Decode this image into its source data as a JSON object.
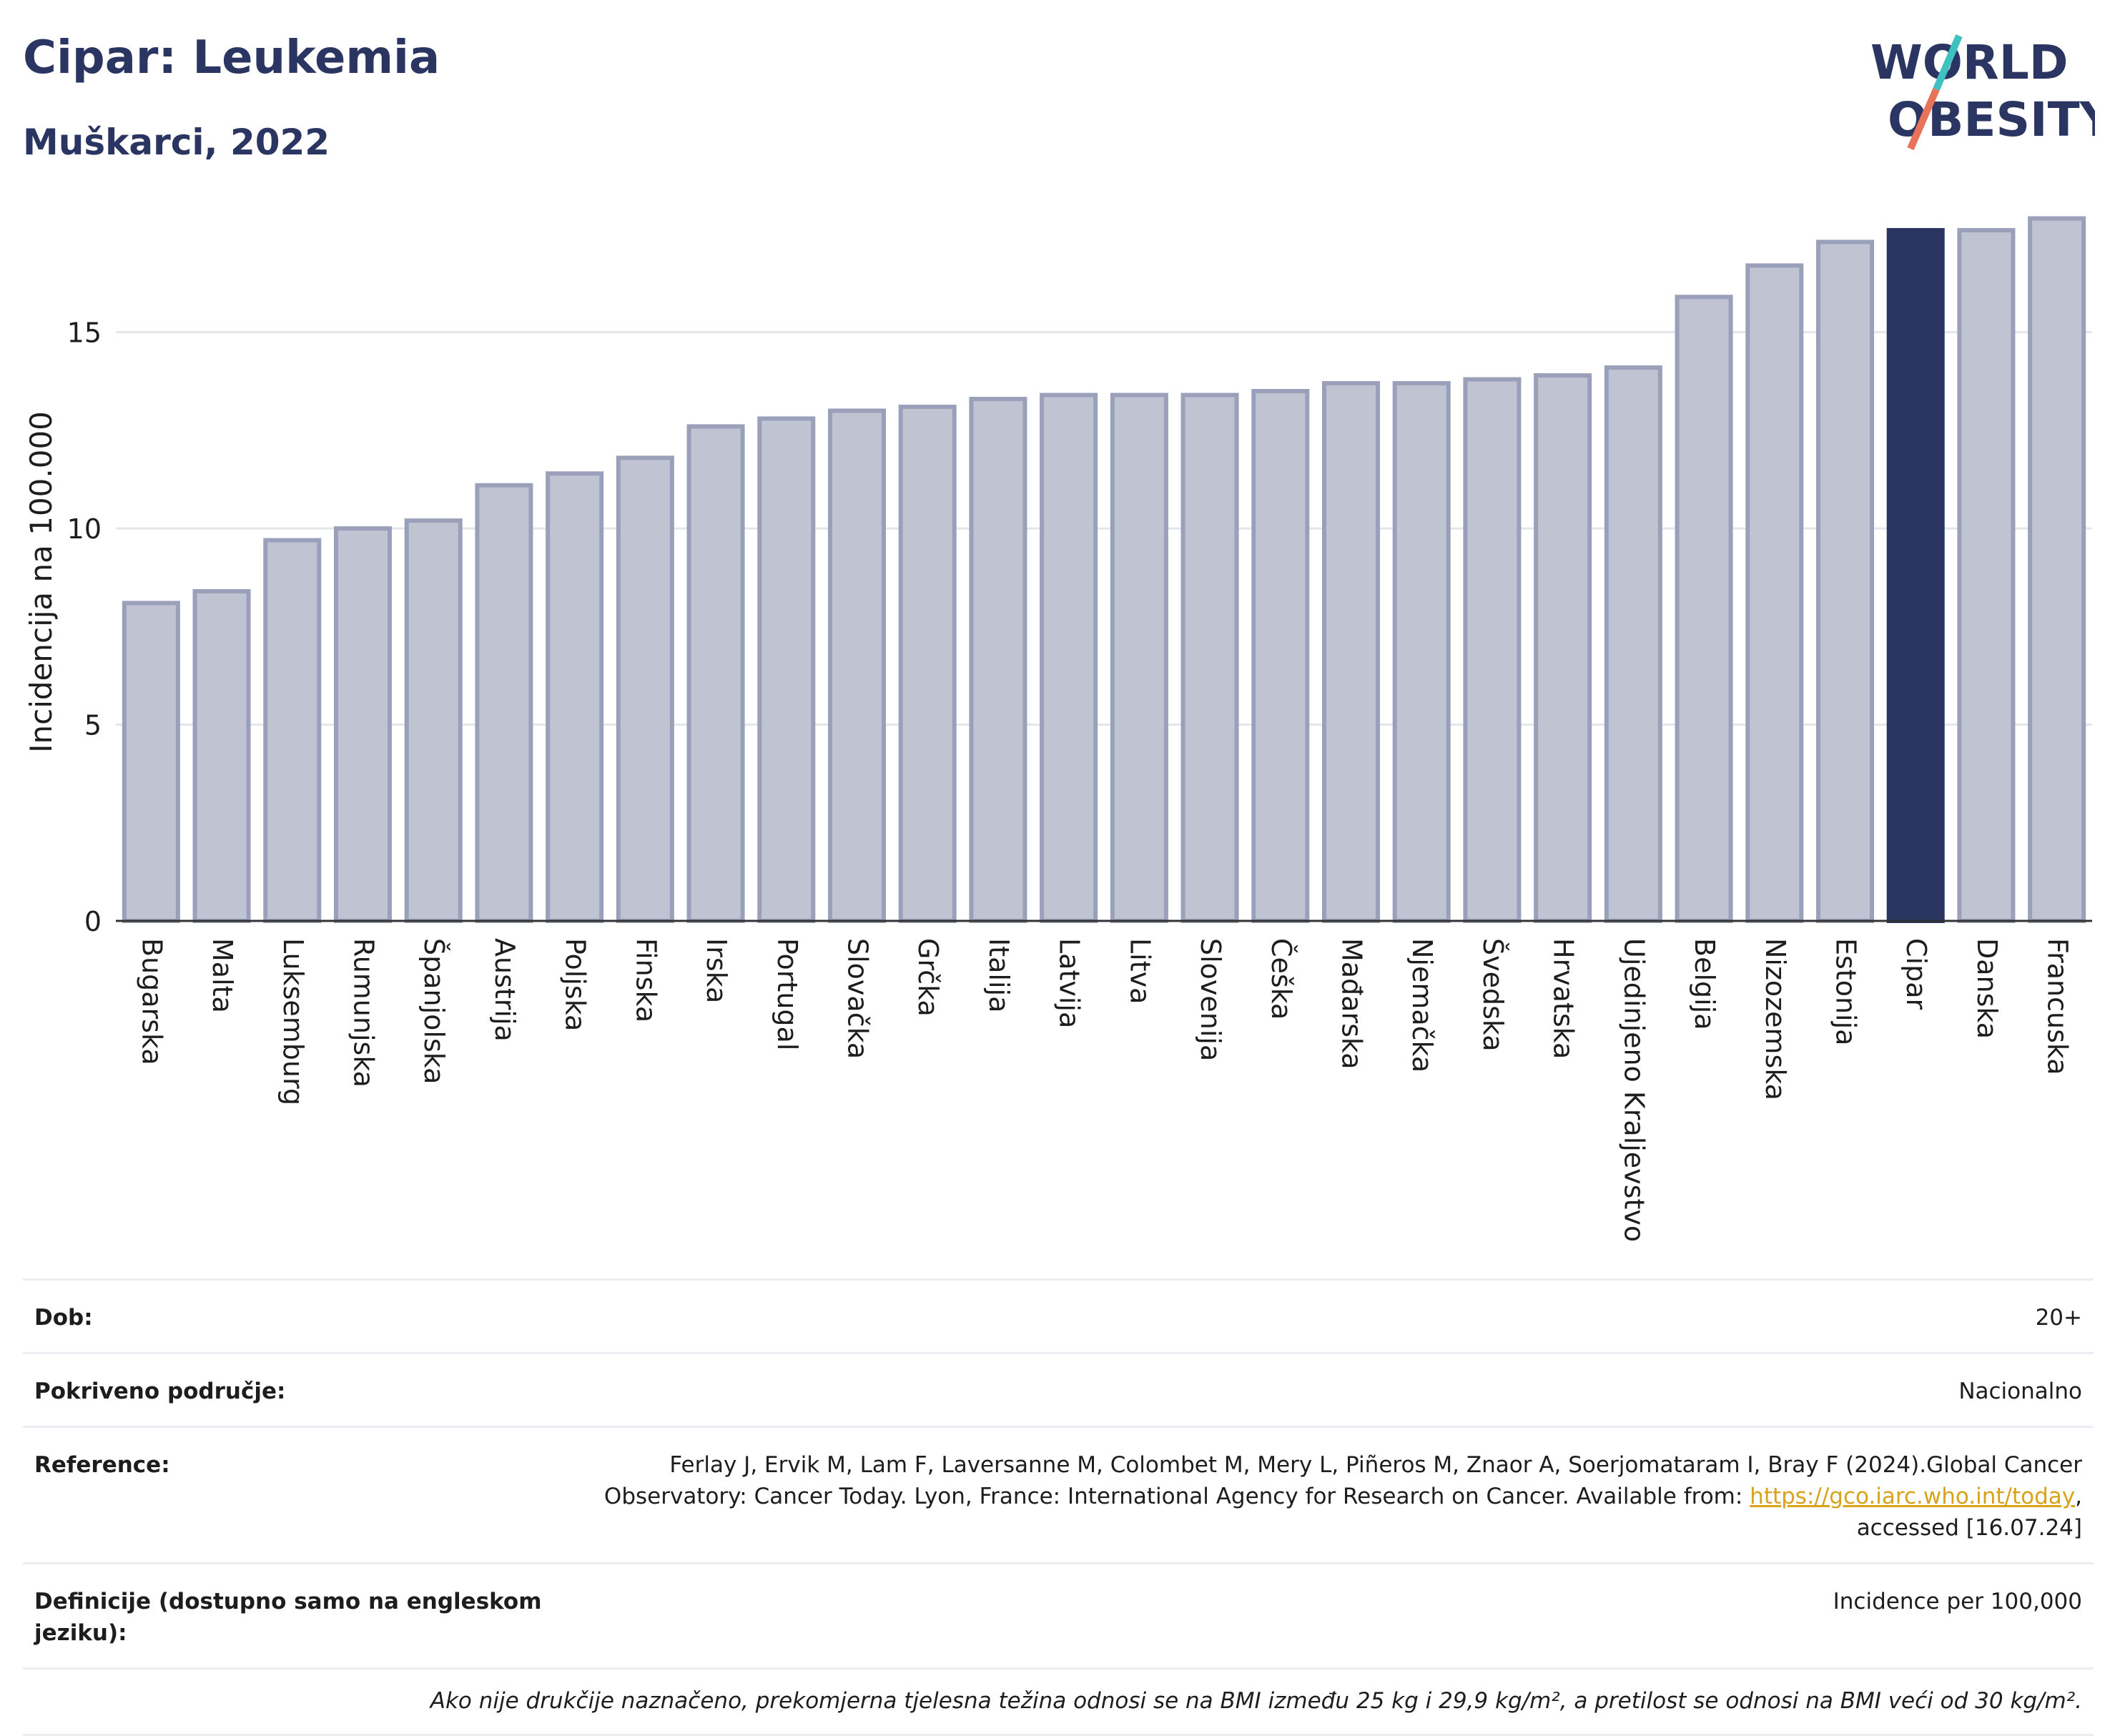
{
  "header": {
    "title": "Cipar: Leukemia",
    "subtitle": "Muškarci, 2022"
  },
  "logo": {
    "line1": "WORLD",
    "line2": "OBESITY",
    "accent_colors": [
      "#3fc1c0",
      "#e8735a"
    ]
  },
  "chart_data": {
    "type": "bar",
    "ylabel": "Incidencija na 100.000",
    "xlabel": "",
    "ylim": [
      0,
      18
    ],
    "yticks": [
      0,
      5,
      10,
      15
    ],
    "grid": true,
    "highlight": "Cipar",
    "colors": {
      "bar": "#c0c4d2",
      "bar_border": "#9aa0b9",
      "highlight": "#2a3561"
    },
    "categories": [
      "Bugarska",
      "Malta",
      "Luksemburg",
      "Rumunjska",
      "Španjolska",
      "Austrija",
      "Poljska",
      "Finska",
      "Irska",
      "Portugal",
      "Slovačka",
      "Grčka",
      "Italija",
      "Latvija",
      "Litva",
      "Slovenija",
      "Češka",
      "Mađarska",
      "Njemačka",
      "Švedska",
      "Hrvatska",
      "Ujedinjeno Kraljevstvo",
      "Belgija",
      "Nizozemska",
      "Estonija",
      "Cipar",
      "Danska",
      "Francuska"
    ],
    "values": [
      8.1,
      8.4,
      9.7,
      10.0,
      10.2,
      11.1,
      11.4,
      11.8,
      12.6,
      12.8,
      13.0,
      13.1,
      13.3,
      13.4,
      13.4,
      13.4,
      13.5,
      13.7,
      13.7,
      13.8,
      13.9,
      14.1,
      15.9,
      16.7,
      17.3,
      17.6,
      17.6,
      17.9
    ]
  },
  "meta": {
    "dob_label": "Dob:",
    "dob_value": "20+",
    "area_label": "Pokriveno područje:",
    "area_value": "Nacionalno",
    "ref_label": "Reference:",
    "ref_text_1": "Ferlay J, Ervik M, Lam F, Laversanne M, Colombet M, Mery L, Piñeros M, Znaor A, Soerjomataram I, Bray F (2024).Global Cancer Observatory: Cancer Today. Lyon, France: International Agency for Research on Cancer. Available from: ",
    "ref_link": "https://gco.iarc.who.int/today",
    "ref_text_2": ", accessed [16.07.24]",
    "def_label": "Definicije (dostupno samo na engleskom jeziku):",
    "def_value": "Incidence per 100,000",
    "note": "Ako nije drukčije naznačeno, prekomjerna tjelesna težina odnosi se na BMI između 25 kg i 29,9 kg/m², a pretilost se odnosi na BMI veći od 30 kg/m²."
  }
}
